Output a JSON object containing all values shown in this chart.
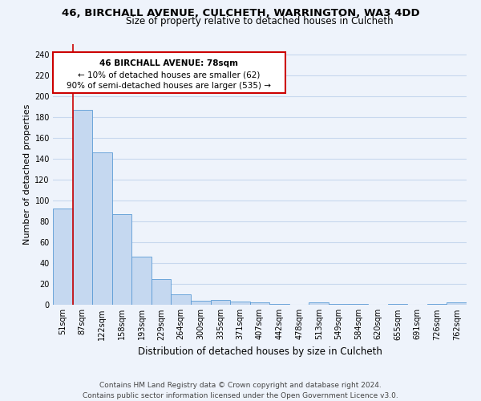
{
  "title1": "46, BIRCHALL AVENUE, CULCHETH, WARRINGTON, WA3 4DD",
  "title2": "Size of property relative to detached houses in Culcheth",
  "xlabel": "Distribution of detached houses by size in Culcheth",
  "ylabel": "Number of detached properties",
  "categories": [
    "51sqm",
    "87sqm",
    "122sqm",
    "158sqm",
    "193sqm",
    "229sqm",
    "264sqm",
    "300sqm",
    "335sqm",
    "371sqm",
    "407sqm",
    "442sqm",
    "478sqm",
    "513sqm",
    "549sqm",
    "584sqm",
    "620sqm",
    "655sqm",
    "691sqm",
    "726sqm",
    "762sqm"
  ],
  "values": [
    92,
    187,
    146,
    87,
    46,
    25,
    10,
    4,
    5,
    3,
    2,
    1,
    0,
    2,
    1,
    1,
    0,
    1,
    0,
    1,
    2
  ],
  "bar_color": "#c5d8f0",
  "bar_edge_color": "#5b9bd5",
  "vline_color": "#cc0000",
  "annotation_box_color": "#cc0000",
  "annotation_text_line1": "46 BIRCHALL AVENUE: 78sqm",
  "annotation_text_line2": "← 10% of detached houses are smaller (62)",
  "annotation_text_line3": "90% of semi-detached houses are larger (535) →",
  "ylim": [
    0,
    250
  ],
  "yticks": [
    0,
    20,
    40,
    60,
    80,
    100,
    120,
    140,
    160,
    180,
    200,
    220,
    240
  ],
  "footnote1": "Contains HM Land Registry data © Crown copyright and database right 2024.",
  "footnote2": "Contains public sector information licensed under the Open Government Licence v3.0.",
  "background_color": "#eef3fb",
  "grid_color": "#c8d8ee",
  "title1_fontsize": 9.5,
  "title2_fontsize": 8.5,
  "tick_fontsize": 7,
  "ylabel_fontsize": 8,
  "xlabel_fontsize": 8.5,
  "footnote_fontsize": 6.5
}
